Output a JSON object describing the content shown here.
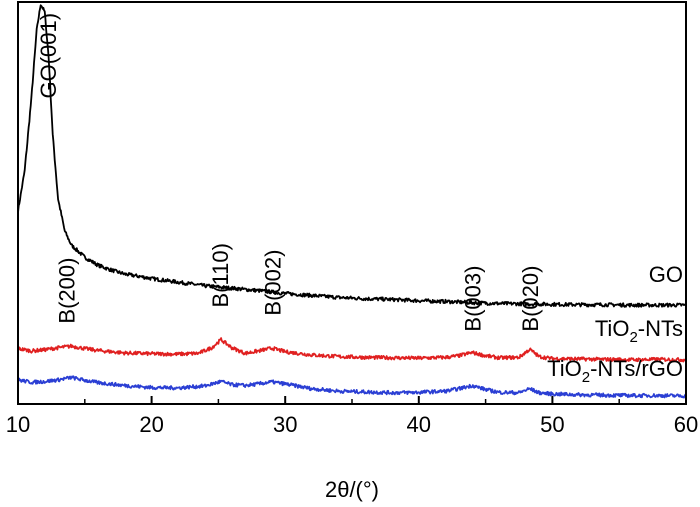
{
  "chart_data": {
    "type": "line",
    "title": "",
    "xlabel": "2θ/(°)",
    "ylabel": "",
    "xlim": [
      10,
      60
    ],
    "ylim": [
      0,
      100
    ],
    "x_ticks": [
      "10",
      "20",
      "30",
      "40",
      "50",
      "60"
    ],
    "y_ticks": [],
    "grid": false,
    "legend": "curve labels at right end",
    "series": [
      {
        "name": "GO",
        "color": "#000000",
        "label": "GO",
        "points": [
          [
            10,
            48.0
          ],
          [
            10.5,
            58.0
          ],
          [
            11.0,
            76.0
          ],
          [
            11.4,
            93.0
          ],
          [
            11.7,
            99.5
          ],
          [
            12.0,
            97.5
          ],
          [
            12.3,
            86.0
          ],
          [
            12.6,
            67.0
          ],
          [
            13.0,
            51.0
          ],
          [
            13.5,
            43.0
          ],
          [
            14.0,
            39.5
          ],
          [
            15.0,
            36.5
          ],
          [
            16.0,
            34.5
          ],
          [
            17.0,
            33.3
          ],
          [
            18.0,
            32.3
          ],
          [
            19.0,
            31.8
          ],
          [
            20.0,
            31.2
          ],
          [
            22.0,
            30.3
          ],
          [
            24.0,
            29.4
          ],
          [
            26.0,
            28.8
          ],
          [
            28.0,
            28.2
          ],
          [
            30.0,
            27.5
          ],
          [
            32.0,
            27.0
          ],
          [
            34.0,
            26.5
          ],
          [
            36.0,
            26.2
          ],
          [
            38.0,
            26.0
          ],
          [
            40.0,
            25.7
          ],
          [
            42.0,
            25.5
          ],
          [
            44.0,
            25.2
          ],
          [
            46.0,
            25.0
          ],
          [
            48.0,
            24.9
          ],
          [
            50.0,
            24.8
          ],
          [
            52.0,
            24.7
          ],
          [
            54.0,
            24.7
          ],
          [
            56.0,
            24.6
          ],
          [
            58.0,
            24.6
          ],
          [
            60.0,
            24.6
          ]
        ]
      },
      {
        "name": "TiO2-NTs",
        "color": "#e02020",
        "label": "TiO",
        "label_sub": "2",
        "label_tail": "-NTs",
        "points": [
          [
            10,
            13.8
          ],
          [
            11,
            13.2
          ],
          [
            12,
            13.5
          ],
          [
            13,
            14.0
          ],
          [
            14,
            14.4
          ],
          [
            15,
            13.8
          ],
          [
            16,
            13.3
          ],
          [
            18,
            12.7
          ],
          [
            20,
            12.5
          ],
          [
            22,
            12.4
          ],
          [
            23.5,
            12.6
          ],
          [
            24.5,
            14.0
          ],
          [
            25.2,
            16.0
          ],
          [
            26.0,
            14.0
          ],
          [
            27.0,
            12.6
          ],
          [
            28.0,
            13.2
          ],
          [
            29.0,
            13.9
          ],
          [
            30.0,
            13.0
          ],
          [
            32.0,
            12.2
          ],
          [
            34.0,
            11.8
          ],
          [
            36.0,
            11.6
          ],
          [
            38.0,
            11.5
          ],
          [
            40.0,
            11.4
          ],
          [
            42.0,
            11.6
          ],
          [
            43.0,
            12.0
          ],
          [
            44.0,
            12.8
          ],
          [
            45.0,
            12.0
          ],
          [
            46.0,
            11.5
          ],
          [
            47.5,
            11.6
          ],
          [
            48.3,
            13.6
          ],
          [
            49.0,
            11.8
          ],
          [
            50.0,
            11.3
          ],
          [
            52.0,
            11.2
          ],
          [
            54.0,
            11.1
          ],
          [
            56.0,
            11.0
          ],
          [
            58.0,
            11.1
          ],
          [
            60.0,
            11.0
          ]
        ]
      },
      {
        "name": "TiO2-NTs/rGO",
        "color": "#2b3fd4",
        "label": "TiO",
        "label_sub": "2",
        "label_tail": "-NTs/rGO",
        "points": [
          [
            10,
            6.0
          ],
          [
            11,
            5.4
          ],
          [
            12,
            5.6
          ],
          [
            13,
            6.0
          ],
          [
            14,
            6.6
          ],
          [
            15,
            5.9
          ],
          [
            16,
            5.3
          ],
          [
            18,
            4.6
          ],
          [
            20,
            4.1
          ],
          [
            22,
            4.0
          ],
          [
            24,
            4.5
          ],
          [
            25.2,
            5.6
          ],
          [
            26.0,
            4.8
          ],
          [
            27.0,
            4.6
          ],
          [
            28.0,
            5.0
          ],
          [
            29.0,
            5.5
          ],
          [
            30.0,
            5.0
          ],
          [
            32.0,
            3.8
          ],
          [
            34.0,
            3.2
          ],
          [
            36.0,
            3.0
          ],
          [
            38.0,
            2.8
          ],
          [
            40.0,
            2.9
          ],
          [
            42.0,
            3.2
          ],
          [
            43.0,
            3.8
          ],
          [
            44.0,
            4.6
          ],
          [
            45.0,
            3.6
          ],
          [
            46.0,
            2.9
          ],
          [
            47.5,
            2.8
          ],
          [
            48.3,
            3.8
          ],
          [
            49.0,
            2.8
          ],
          [
            50.0,
            2.5
          ],
          [
            52.0,
            2.3
          ],
          [
            54.0,
            2.2
          ],
          [
            56.0,
            2.1
          ],
          [
            58.0,
            2.1
          ],
          [
            60.0,
            2.0
          ]
        ]
      }
    ],
    "annotations": [
      {
        "text": "GO(001)",
        "x": 12.4,
        "y": 76
      },
      {
        "text": "B(200)",
        "x": 13.8,
        "y": 20
      },
      {
        "text": "B(110)",
        "x": 25.3,
        "y": 24
      },
      {
        "text": "B(002)",
        "x": 29.2,
        "y": 22
      },
      {
        "text": "B(003)",
        "x": 44.2,
        "y": 18
      },
      {
        "text": "B(020)",
        "x": 48.5,
        "y": 18
      }
    ]
  }
}
